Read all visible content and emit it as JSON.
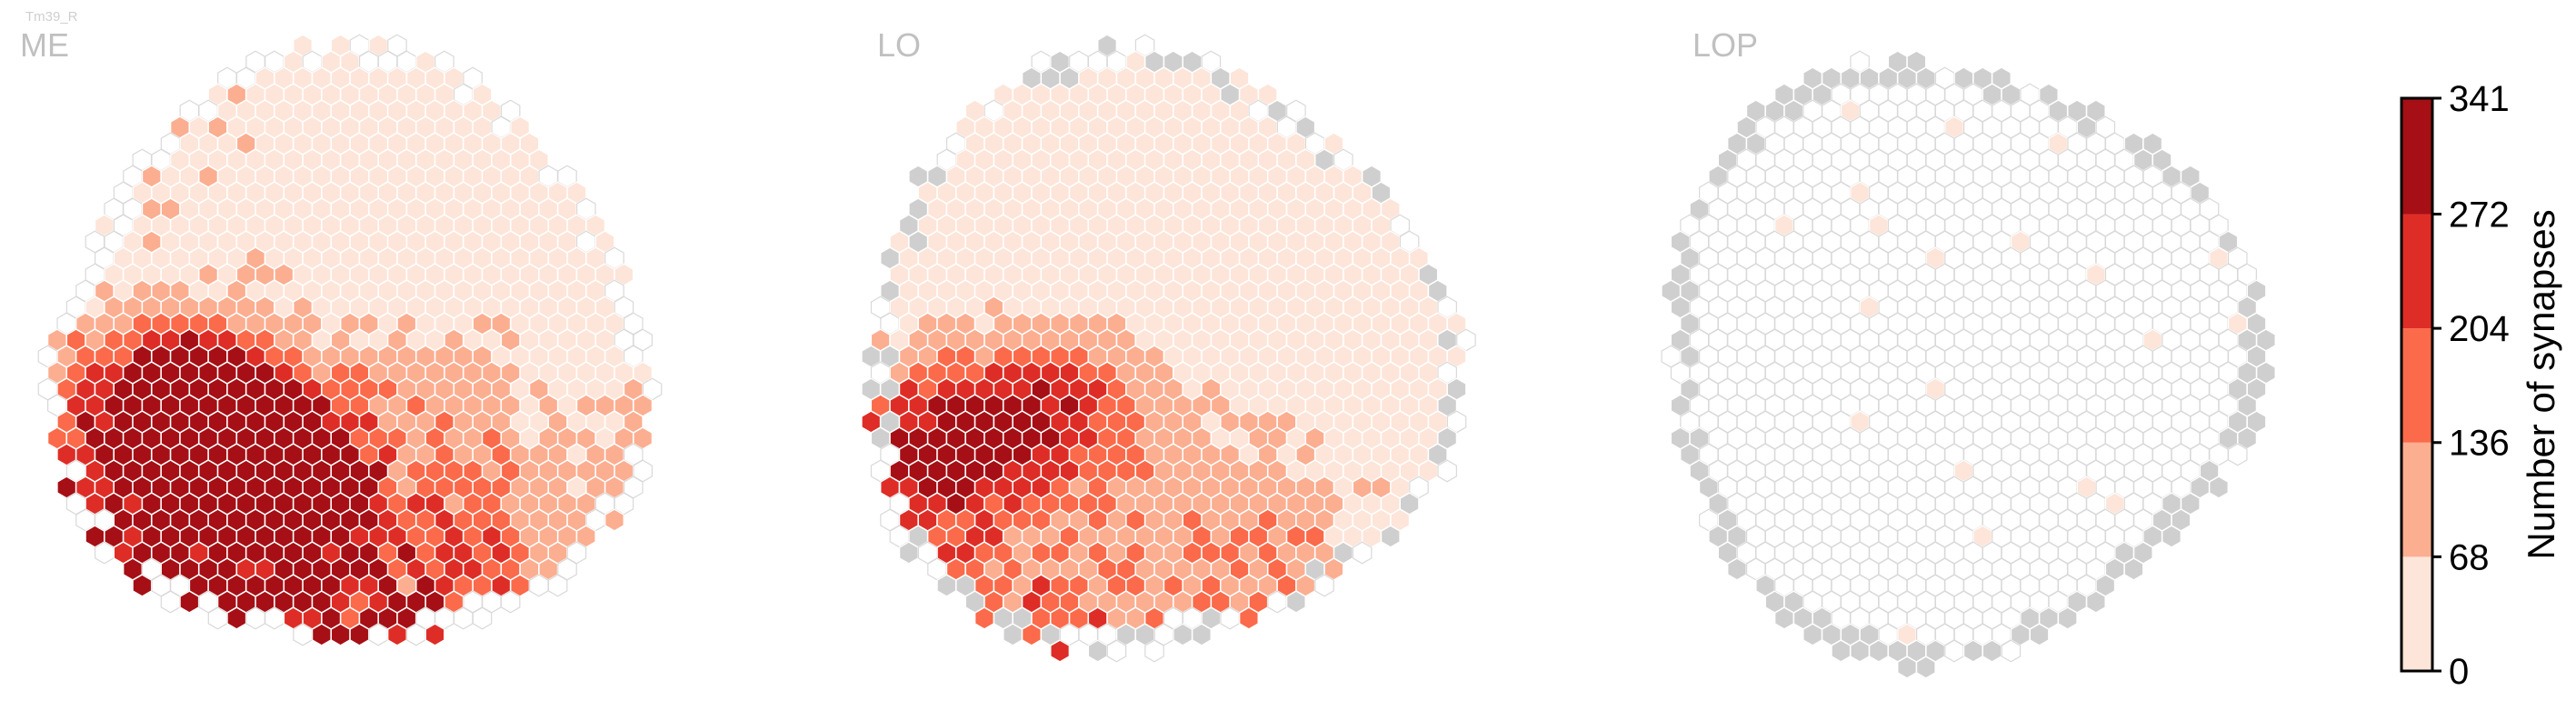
{
  "chart_data": {
    "type": "heatmap",
    "title": "Tm39_R",
    "panels": [
      {
        "name": "ME",
        "hot_core": [
          [
            2,
            6,
            1.0
          ],
          [
            0,
            5,
            0.95
          ],
          [
            5,
            8,
            0.9
          ],
          [
            -1,
            3,
            0.75
          ]
        ],
        "baseline": 0.12,
        "lower_half_intensity": 0.55,
        "gray_edge_fraction": 0.0,
        "empty_edge_fraction": 0.55
      },
      {
        "name": "LO",
        "hot_core": [
          [
            -4,
            6,
            0.55
          ],
          [
            0,
            4,
            0.45
          ],
          [
            4,
            3,
            0.35
          ]
        ],
        "baseline": 0.08,
        "lower_half_intensity": 0.3,
        "gray_edge_fraction": 0.35,
        "empty_edge_fraction": 0.35
      },
      {
        "name": "LOP",
        "hot_core": [],
        "baseline": 0.0,
        "lower_half_intensity": 0.0,
        "gray_edge_fraction": 0.8,
        "empty_edge_fraction": 0.0,
        "sparse_values": 0.04
      }
    ],
    "colorbar": {
      "label": "Number of synapses",
      "min": 0,
      "max": 341,
      "ticks": [
        0,
        68,
        136,
        204,
        272,
        341
      ],
      "bins": [
        {
          "from": 0,
          "to": 68,
          "color": "#fee5d9"
        },
        {
          "from": 68,
          "to": 136,
          "color": "#fcae91"
        },
        {
          "from": 136,
          "to": 204,
          "color": "#fb6a4a"
        },
        {
          "from": 204,
          "to": 272,
          "color": "#de2d26"
        },
        {
          "from": 272,
          "to": 341,
          "color": "#a50f15"
        }
      ]
    },
    "colors": {
      "empty_fill": "#ffffff",
      "empty_stroke": "#d9d9d9",
      "missing_fill": "#cfcfcf",
      "cell_stroke": "#ffffff",
      "panel_label": "#c0c0c0"
    }
  }
}
